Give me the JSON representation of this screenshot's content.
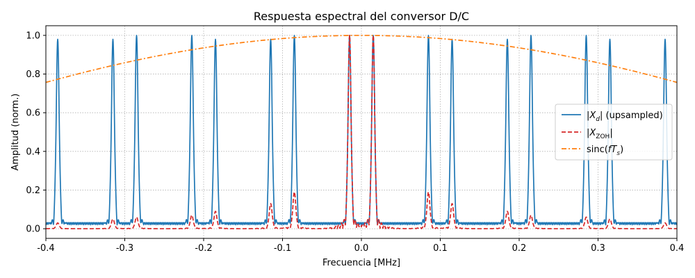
{
  "chart_data": {
    "type": "line",
    "title": "Respuesta espectral del conversor D/C",
    "xlabel": "Frecuencia [MHz]",
    "ylabel": "Amplitud (norm.)",
    "xlim": [
      -0.4,
      0.4
    ],
    "ylim": [
      -0.05,
      1.05
    ],
    "xticks": [
      "-0.4",
      "-0.3",
      "-0.2",
      "-0.1",
      "0.0",
      "0.1",
      "0.2",
      "0.3",
      "0.4"
    ],
    "xtick_values": [
      -0.4,
      -0.3,
      -0.2,
      -0.1,
      0.0,
      0.1,
      0.2,
      0.3,
      0.4
    ],
    "yticks": [
      "0.0",
      "0.2",
      "0.4",
      "0.6",
      "0.8",
      "1.0"
    ],
    "ytick_values": [
      0.0,
      0.2,
      0.4,
      0.6,
      0.8,
      1.0
    ],
    "grid": true,
    "legend_position": "center-right",
    "series": [
      {
        "name": "|X_d| (upsampled)",
        "style": "solid",
        "color": "#1f77b4",
        "peak_centers": [
          -0.385,
          -0.315,
          -0.285,
          -0.215,
          -0.185,
          -0.115,
          -0.085,
          -0.015,
          0.015,
          0.085,
          0.115,
          0.185,
          0.215,
          0.285,
          0.315,
          0.385
        ],
        "peak_values": [
          0.98,
          0.98,
          1.0,
          1.0,
          0.98,
          0.98,
          1.0,
          1.0,
          1.0,
          1.0,
          0.98,
          0.98,
          1.0,
          1.0,
          0.98,
          0.98
        ],
        "floor": 0.02
      },
      {
        "name": "|X_ZOH|",
        "style": "dashed",
        "color": "#d62728",
        "peak_centers": [
          -0.385,
          -0.315,
          -0.285,
          -0.215,
          -0.185,
          -0.115,
          -0.085,
          -0.015,
          0.015,
          0.085,
          0.115,
          0.185,
          0.215,
          0.285,
          0.315,
          0.385
        ],
        "peak_values": [
          0.03,
          0.05,
          0.06,
          0.07,
          0.09,
          0.13,
          0.19,
          1.0,
          1.0,
          0.19,
          0.13,
          0.09,
          0.07,
          0.06,
          0.05,
          0.03
        ],
        "floor": 0.0
      },
      {
        "name": "sinc(fT_s)",
        "style": "dashdot",
        "color": "#ff7f0e",
        "x": [
          -0.4,
          -0.3,
          -0.2,
          -0.1,
          0.0,
          0.1,
          0.2,
          0.3,
          0.4
        ],
        "values": [
          0.757,
          0.858,
          0.935,
          0.984,
          1.0,
          0.984,
          0.935,
          0.858,
          0.757
        ]
      }
    ]
  },
  "legend": {
    "entries": [
      {
        "label_pre": "|",
        "label_main": "X",
        "label_sub": "d",
        "label_post": "| (upsampled)"
      },
      {
        "label_pre": "|",
        "label_main": "X",
        "label_sub": "ZOH",
        "label_post": "|"
      },
      {
        "label_pre": "sinc(",
        "label_main": "fT",
        "label_sub": "s",
        "label_post": ")"
      }
    ]
  }
}
